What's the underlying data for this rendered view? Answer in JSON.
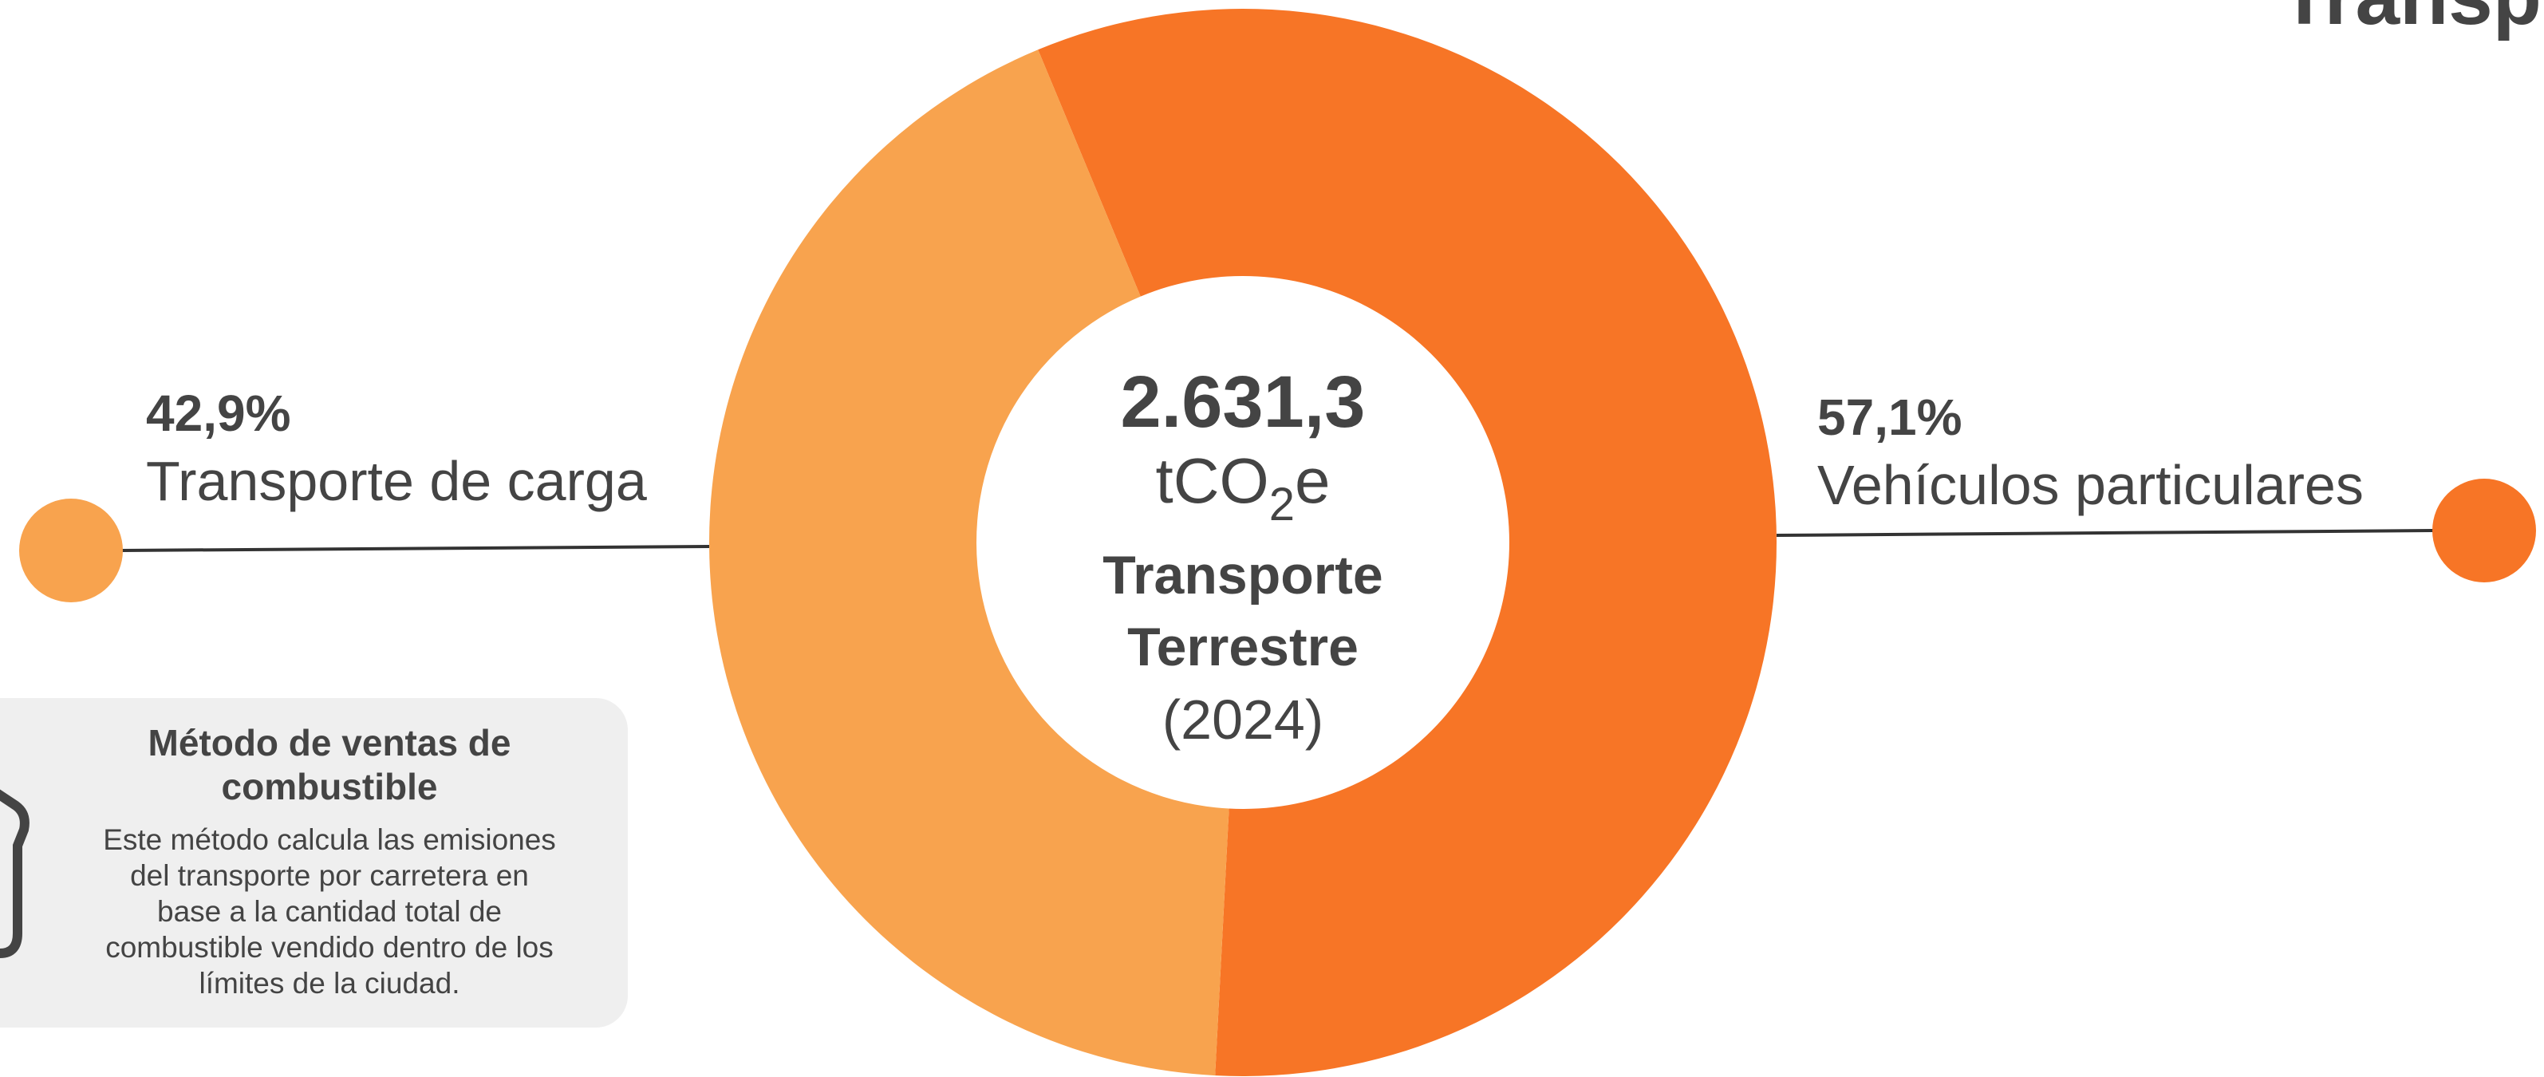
{
  "chart_data": {
    "type": "donut",
    "title": "Transporte",
    "center_value": "2.631,3",
    "center_unit": {
      "main": "tCO",
      "sub": "2",
      "end": "e"
    },
    "center_label_lines": [
      "Transporte",
      "Terrestre"
    ],
    "center_year": "(2024)",
    "categories": [
      "Vehículos particulares",
      "Transporte de carga"
    ],
    "values": [
      57.1,
      42.9
    ],
    "value_labels": [
      "57,1%",
      "42,9%"
    ],
    "colors": [
      "#f77526",
      "#f8a34e"
    ]
  },
  "info_box": {
    "title_lines": [
      "Método de ventas de",
      "combustible"
    ],
    "text_lines": [
      "Este método calcula las emisiones",
      "del transporte por carretera en",
      "base a la cantidad total de",
      "combustible vendido dentro de los",
      "límites de la ciudad."
    ]
  }
}
